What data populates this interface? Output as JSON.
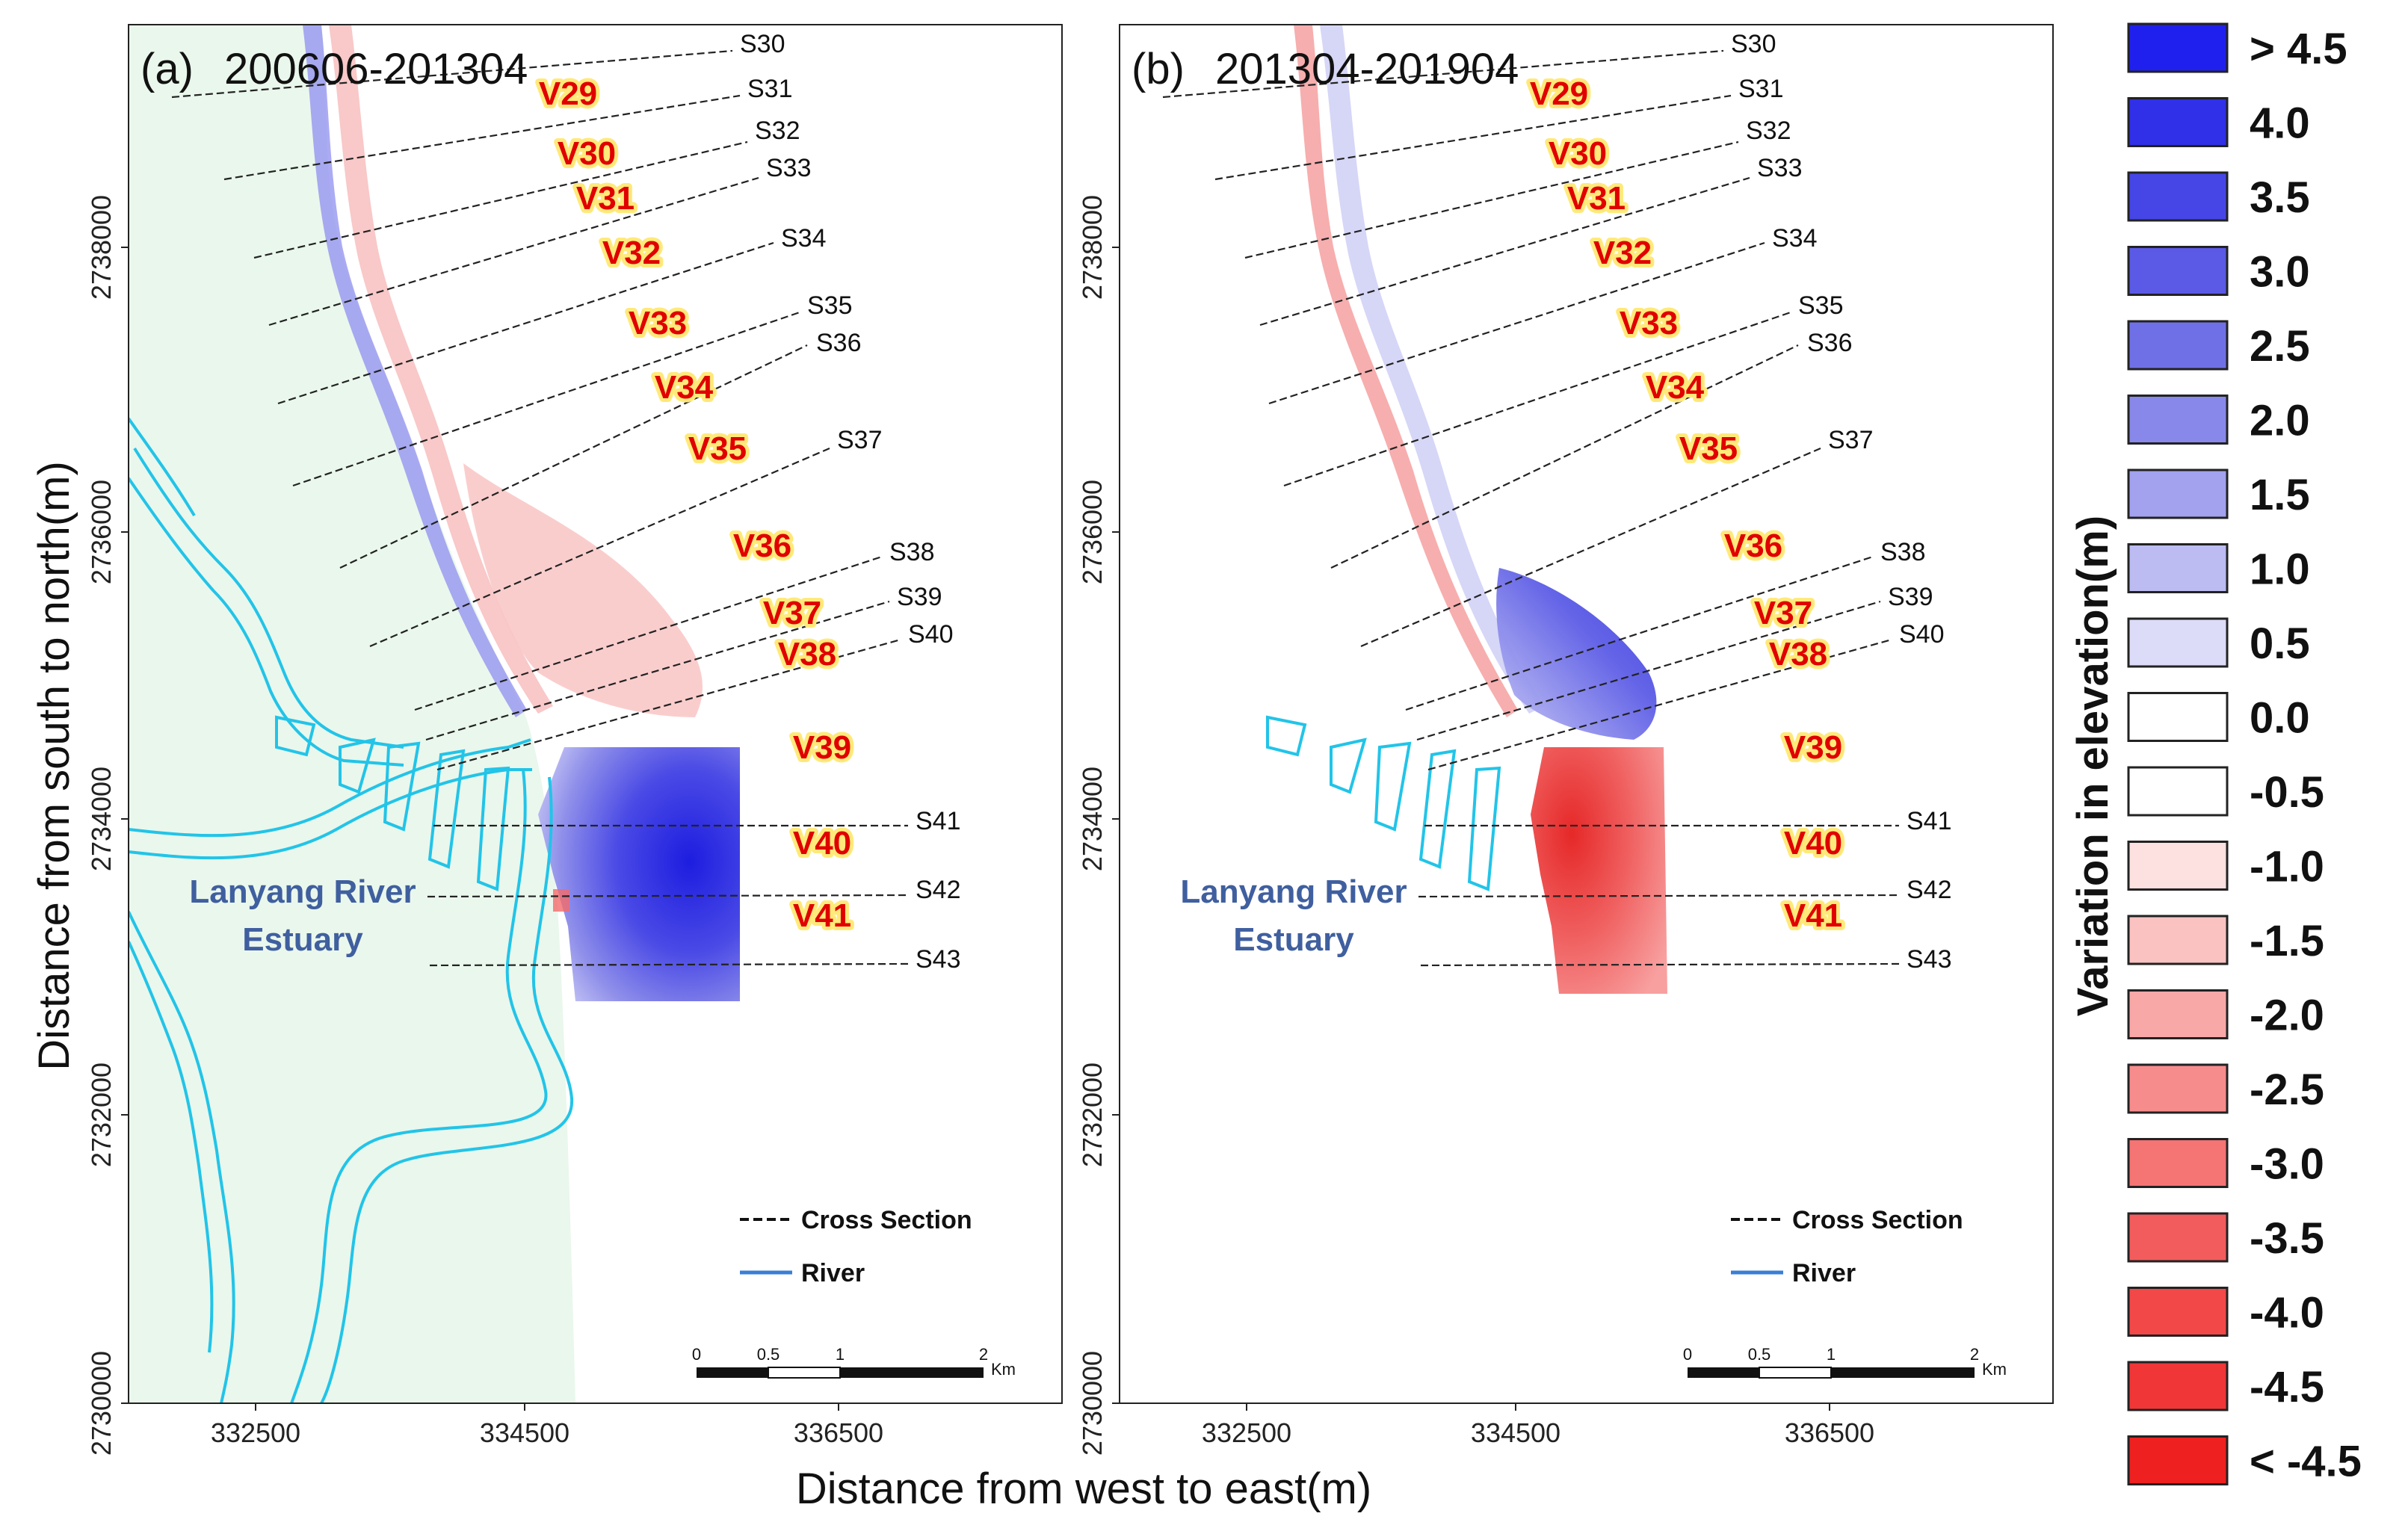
{
  "figure": {
    "x_axis_title": "Distance from west to east(m)",
    "y_axis_title": "Distance from south to north(m)",
    "x_ticks": [
      "332500",
      "334500",
      "336500"
    ],
    "y_ticks": [
      "2730000",
      "2732000",
      "2734000",
      "2736000",
      "2738000"
    ]
  },
  "panels": [
    {
      "label": "(a)",
      "period": "200606-201304",
      "pattern": "accretion",
      "estuary_line1": "Lanyang River",
      "estuary_line2": "Estuary"
    },
    {
      "label": "(b)",
      "period": "201304-201904",
      "pattern": "erosion",
      "estuary_line1": "Lanyang River",
      "estuary_line2": "Estuary"
    }
  ],
  "cross_sections": [
    "S30",
    "S31",
    "S32",
    "S33",
    "S34",
    "S35",
    "S36",
    "S37",
    "S38",
    "S39",
    "S40",
    "S41",
    "S42",
    "S43"
  ],
  "volume_units": [
    "V29",
    "V30",
    "V31",
    "V32",
    "V33",
    "V34",
    "V35",
    "V36",
    "V37",
    "V38",
    "V39",
    "V40",
    "V41"
  ],
  "map_legend": {
    "cross_section": "Cross Section",
    "river": "River"
  },
  "scale_bar": {
    "ticks": [
      "0",
      "0.5",
      "1",
      "2"
    ],
    "unit": "Km"
  },
  "colorbar": {
    "title": "Variation in elevation(m)",
    "classes": [
      {
        "label": "> 4.5",
        "color": "#2020ee"
      },
      {
        "label": "4.0",
        "color": "#3030e8"
      },
      {
        "label": "3.5",
        "color": "#4646e6"
      },
      {
        "label": "3.0",
        "color": "#5a5ae6"
      },
      {
        "label": "2.5",
        "color": "#7070e6"
      },
      {
        "label": "2.0",
        "color": "#8888ea"
      },
      {
        "label": "1.5",
        "color": "#a2a2ef"
      },
      {
        "label": "1.0",
        "color": "#bcbcf3"
      },
      {
        "label": "0.5",
        "color": "#dcdcf8"
      },
      {
        "label": "0.0",
        "color": "#ffffff"
      },
      {
        "label": "-0.5",
        "color": "#ffffff"
      },
      {
        "label": "-1.0",
        "color": "#fde0e0"
      },
      {
        "label": "-1.5",
        "color": "#fbc2c2"
      },
      {
        "label": "-2.0",
        "color": "#f9a8a8"
      },
      {
        "label": "-2.5",
        "color": "#f78c8c"
      },
      {
        "label": "-3.0",
        "color": "#f57474"
      },
      {
        "label": "-3.5",
        "color": "#f35c5c"
      },
      {
        "label": "-4.0",
        "color": "#f24848"
      },
      {
        "label": "-4.5",
        "color": "#f03636"
      },
      {
        "label": "< -4.5",
        "color": "#ee2020"
      }
    ]
  },
  "colors": {
    "land": "#eaf7ec",
    "river": "#22c4e8",
    "accretion": "#2323dd",
    "erosion": "#e83030",
    "v_label": "#e00000",
    "v_halo": "#ffe97a",
    "estuary_text": "#3f5f9f"
  }
}
